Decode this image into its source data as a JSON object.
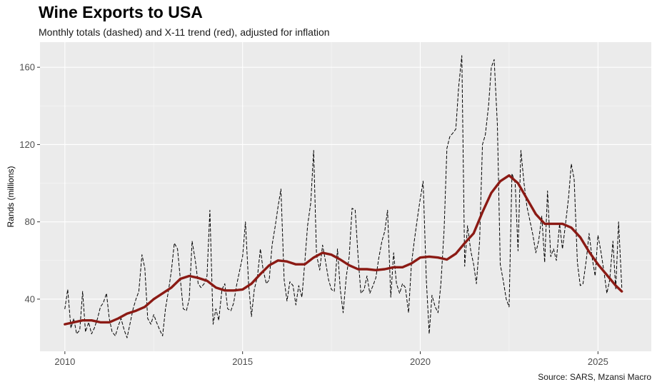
{
  "chart_data": {
    "type": "line",
    "title": "Wine Exports to USA",
    "subtitle": "Monthly totals (dashed) and X-11 trend (red), adjusted for inflation",
    "caption": "Source: SARS, Mzansi Macro",
    "xlabel": "",
    "ylabel": "Rands (millions)",
    "xlim": [
      2009.3,
      2026.5
    ],
    "ylim": [
      13,
      173
    ],
    "x_ticks": [
      2010,
      2015,
      2020,
      2025
    ],
    "y_ticks": [
      40,
      80,
      120,
      160
    ],
    "grid": true,
    "background": "#ebebeb",
    "series": [
      {
        "style": "dashed",
        "color": "#000000",
        "points": [
          [
            2010.0,
            35
          ],
          [
            2010.08,
            45
          ],
          [
            2010.17,
            25
          ],
          [
            2010.25,
            30
          ],
          [
            2010.33,
            22
          ],
          [
            2010.42,
            24
          ],
          [
            2010.5,
            44
          ],
          [
            2010.58,
            23
          ],
          [
            2010.67,
            28
          ],
          [
            2010.75,
            22
          ],
          [
            2010.83,
            25
          ],
          [
            2010.92,
            30
          ],
          [
            2011.0,
            36
          ],
          [
            2011.08,
            38
          ],
          [
            2011.17,
            43
          ],
          [
            2011.25,
            30
          ],
          [
            2011.33,
            23
          ],
          [
            2011.42,
            21
          ],
          [
            2011.5,
            26
          ],
          [
            2011.58,
            30
          ],
          [
            2011.67,
            24
          ],
          [
            2011.75,
            20
          ],
          [
            2011.83,
            27
          ],
          [
            2011.92,
            35
          ],
          [
            2012.0,
            40
          ],
          [
            2012.08,
            44
          ],
          [
            2012.17,
            63
          ],
          [
            2012.25,
            56
          ],
          [
            2012.33,
            30
          ],
          [
            2012.42,
            27
          ],
          [
            2012.5,
            32
          ],
          [
            2012.58,
            28
          ],
          [
            2012.67,
            24
          ],
          [
            2012.75,
            21
          ],
          [
            2012.83,
            35
          ],
          [
            2012.92,
            45
          ],
          [
            2013.0,
            55
          ],
          [
            2013.08,
            69
          ],
          [
            2013.17,
            66
          ],
          [
            2013.25,
            50
          ],
          [
            2013.33,
            35
          ],
          [
            2013.42,
            34
          ],
          [
            2013.5,
            40
          ],
          [
            2013.58,
            70
          ],
          [
            2013.67,
            60
          ],
          [
            2013.75,
            48
          ],
          [
            2013.83,
            46
          ],
          [
            2013.92,
            48
          ],
          [
            2014.0,
            52
          ],
          [
            2014.08,
            86
          ],
          [
            2014.17,
            27
          ],
          [
            2014.25,
            35
          ],
          [
            2014.33,
            29
          ],
          [
            2014.42,
            45
          ],
          [
            2014.5,
            48
          ],
          [
            2014.58,
            35
          ],
          [
            2014.67,
            34
          ],
          [
            2014.75,
            38
          ],
          [
            2014.83,
            47
          ],
          [
            2014.92,
            55
          ],
          [
            2015.0,
            62
          ],
          [
            2015.08,
            80
          ],
          [
            2015.17,
            48
          ],
          [
            2015.25,
            31
          ],
          [
            2015.33,
            45
          ],
          [
            2015.42,
            52
          ],
          [
            2015.5,
            66
          ],
          [
            2015.58,
            55
          ],
          [
            2015.67,
            48
          ],
          [
            2015.75,
            50
          ],
          [
            2015.83,
            68
          ],
          [
            2015.92,
            78
          ],
          [
            2016.0,
            88
          ],
          [
            2016.08,
            97
          ],
          [
            2016.17,
            50
          ],
          [
            2016.25,
            39
          ],
          [
            2016.33,
            49
          ],
          [
            2016.42,
            47
          ],
          [
            2016.5,
            37
          ],
          [
            2016.58,
            47
          ],
          [
            2016.67,
            41
          ],
          [
            2016.75,
            59
          ],
          [
            2016.83,
            78
          ],
          [
            2016.92,
            90
          ],
          [
            2017.0,
            117
          ],
          [
            2017.08,
            63
          ],
          [
            2017.17,
            55
          ],
          [
            2017.25,
            68
          ],
          [
            2017.33,
            60
          ],
          [
            2017.42,
            50
          ],
          [
            2017.5,
            45
          ],
          [
            2017.58,
            44
          ],
          [
            2017.67,
            66
          ],
          [
            2017.75,
            45
          ],
          [
            2017.83,
            33
          ],
          [
            2017.92,
            52
          ],
          [
            2018.0,
            62
          ],
          [
            2018.08,
            87
          ],
          [
            2018.17,
            86
          ],
          [
            2018.25,
            62
          ],
          [
            2018.33,
            43
          ],
          [
            2018.42,
            45
          ],
          [
            2018.5,
            52
          ],
          [
            2018.58,
            43
          ],
          [
            2018.67,
            47
          ],
          [
            2018.75,
            51
          ],
          [
            2018.83,
            61
          ],
          [
            2018.92,
            70
          ],
          [
            2019.0,
            75
          ],
          [
            2019.08,
            86
          ],
          [
            2019.17,
            41
          ],
          [
            2019.25,
            64
          ],
          [
            2019.33,
            48
          ],
          [
            2019.42,
            43
          ],
          [
            2019.5,
            48
          ],
          [
            2019.58,
            46
          ],
          [
            2019.67,
            33
          ],
          [
            2019.75,
            58
          ],
          [
            2019.83,
            70
          ],
          [
            2019.92,
            82
          ],
          [
            2020.0,
            92
          ],
          [
            2020.08,
            101
          ],
          [
            2020.17,
            50
          ],
          [
            2020.25,
            22
          ],
          [
            2020.33,
            42
          ],
          [
            2020.42,
            36
          ],
          [
            2020.5,
            33
          ],
          [
            2020.58,
            48
          ],
          [
            2020.67,
            76
          ],
          [
            2020.75,
            118
          ],
          [
            2020.83,
            124
          ],
          [
            2020.92,
            126
          ],
          [
            2021.0,
            128
          ],
          [
            2021.08,
            150
          ],
          [
            2021.17,
            166
          ],
          [
            2021.25,
            57
          ],
          [
            2021.33,
            78
          ],
          [
            2021.42,
            65
          ],
          [
            2021.5,
            58
          ],
          [
            2021.58,
            48
          ],
          [
            2021.67,
            70
          ],
          [
            2021.75,
            120
          ],
          [
            2021.83,
            125
          ],
          [
            2021.92,
            140
          ],
          [
            2022.0,
            160
          ],
          [
            2022.08,
            164
          ],
          [
            2022.17,
            130
          ],
          [
            2022.25,
            58
          ],
          [
            2022.33,
            50
          ],
          [
            2022.42,
            40
          ],
          [
            2022.5,
            36
          ],
          [
            2022.58,
            105
          ],
          [
            2022.67,
            100
          ],
          [
            2022.75,
            65
          ],
          [
            2022.83,
            117
          ],
          [
            2022.92,
            100
          ],
          [
            2023.0,
            88
          ],
          [
            2023.08,
            81
          ],
          [
            2023.17,
            73
          ],
          [
            2023.25,
            64
          ],
          [
            2023.33,
            70
          ],
          [
            2023.42,
            83
          ],
          [
            2023.5,
            59
          ],
          [
            2023.58,
            96
          ],
          [
            2023.67,
            62
          ],
          [
            2023.75,
            66
          ],
          [
            2023.83,
            60
          ],
          [
            2023.92,
            79
          ],
          [
            2024.0,
            66
          ],
          [
            2024.08,
            78
          ],
          [
            2024.17,
            92
          ],
          [
            2024.25,
            110
          ],
          [
            2024.33,
            102
          ],
          [
            2024.42,
            59
          ],
          [
            2024.5,
            47
          ],
          [
            2024.58,
            48
          ],
          [
            2024.67,
            60
          ],
          [
            2024.75,
            74
          ],
          [
            2024.83,
            62
          ],
          [
            2024.92,
            52
          ],
          [
            2025.0,
            73
          ],
          [
            2025.08,
            65
          ],
          [
            2025.17,
            54
          ],
          [
            2025.25,
            43
          ],
          [
            2025.33,
            50
          ],
          [
            2025.42,
            70
          ],
          [
            2025.5,
            45
          ],
          [
            2025.58,
            80
          ],
          [
            2025.67,
            46
          ]
        ]
      },
      {
        "style": "solid",
        "color": "#8b1a14",
        "points": [
          [
            2010.0,
            27
          ],
          [
            2010.5,
            29
          ],
          [
            2010.75,
            29
          ],
          [
            2011.0,
            28
          ],
          [
            2011.25,
            28
          ],
          [
            2011.5,
            30
          ],
          [
            2011.75,
            32.5
          ],
          [
            2012.0,
            34
          ],
          [
            2012.25,
            36
          ],
          [
            2012.5,
            40
          ],
          [
            2012.75,
            43
          ],
          [
            2013.0,
            46
          ],
          [
            2013.25,
            50.5
          ],
          [
            2013.5,
            52
          ],
          [
            2013.75,
            51
          ],
          [
            2014.0,
            49.5
          ],
          [
            2014.25,
            46
          ],
          [
            2014.5,
            44.5
          ],
          [
            2014.75,
            44.5
          ],
          [
            2015.0,
            45
          ],
          [
            2015.25,
            48
          ],
          [
            2015.5,
            53
          ],
          [
            2015.75,
            57.5
          ],
          [
            2016.0,
            60
          ],
          [
            2016.25,
            59.5
          ],
          [
            2016.5,
            58
          ],
          [
            2016.75,
            58
          ],
          [
            2017.0,
            61.5
          ],
          [
            2017.25,
            64
          ],
          [
            2017.5,
            63
          ],
          [
            2017.75,
            60.5
          ],
          [
            2018.0,
            57.5
          ],
          [
            2018.25,
            55.5
          ],
          [
            2018.5,
            55.5
          ],
          [
            2018.75,
            55
          ],
          [
            2019.0,
            55.5
          ],
          [
            2019.25,
            56.5
          ],
          [
            2019.5,
            56.5
          ],
          [
            2019.75,
            58.5
          ],
          [
            2020.0,
            61.5
          ],
          [
            2020.25,
            62
          ],
          [
            2020.5,
            61.5
          ],
          [
            2020.75,
            60.5
          ],
          [
            2021.0,
            63.5
          ],
          [
            2021.25,
            69
          ],
          [
            2021.5,
            74
          ],
          [
            2021.75,
            85
          ],
          [
            2022.0,
            95
          ],
          [
            2022.25,
            101
          ],
          [
            2022.5,
            104
          ],
          [
            2022.75,
            100
          ],
          [
            2023.0,
            92
          ],
          [
            2023.25,
            84
          ],
          [
            2023.5,
            79
          ],
          [
            2023.75,
            79
          ],
          [
            2024.0,
            79
          ],
          [
            2024.25,
            77
          ],
          [
            2024.5,
            72
          ],
          [
            2024.75,
            64.5
          ],
          [
            2025.0,
            58
          ],
          [
            2025.25,
            52.5
          ],
          [
            2025.5,
            47
          ],
          [
            2025.67,
            44
          ]
        ]
      }
    ]
  }
}
